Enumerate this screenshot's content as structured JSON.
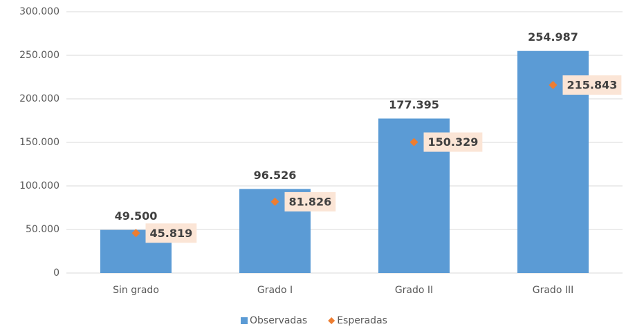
{
  "chart_data": {
    "type": "bar",
    "categories": [
      "Sin grado",
      "Grado I",
      "Grado II",
      "Grado III"
    ],
    "series": [
      {
        "name": "Observadas",
        "color": "#5b9bd5",
        "marker": "bar",
        "values": [
          49500,
          96526,
          177395,
          254987
        ],
        "value_labels": [
          "49.500",
          "96.526",
          "177.395",
          "254.987"
        ]
      },
      {
        "name": "Esperadas",
        "color": "#ed7d31",
        "marker": "diamond",
        "values": [
          45819,
          81826,
          150329,
          215843
        ],
        "value_labels": [
          "45.819",
          "81.826",
          "150.329",
          "215.843"
        ]
      }
    ],
    "ylim": [
      0,
      300000
    ],
    "yticks": [
      0,
      {
        "value": 50000,
        "label": "50.000"
      },
      {
        "value": 100000,
        "label": "100.000"
      },
      {
        "value": 150000,
        "label": "150.000"
      },
      {
        "value": 200000,
        "label": "200.000"
      },
      {
        "value": 250000,
        "label": "250.000"
      },
      {
        "value": 300000,
        "label": "300.000"
      }
    ],
    "grid": true,
    "legend": "bottom"
  }
}
